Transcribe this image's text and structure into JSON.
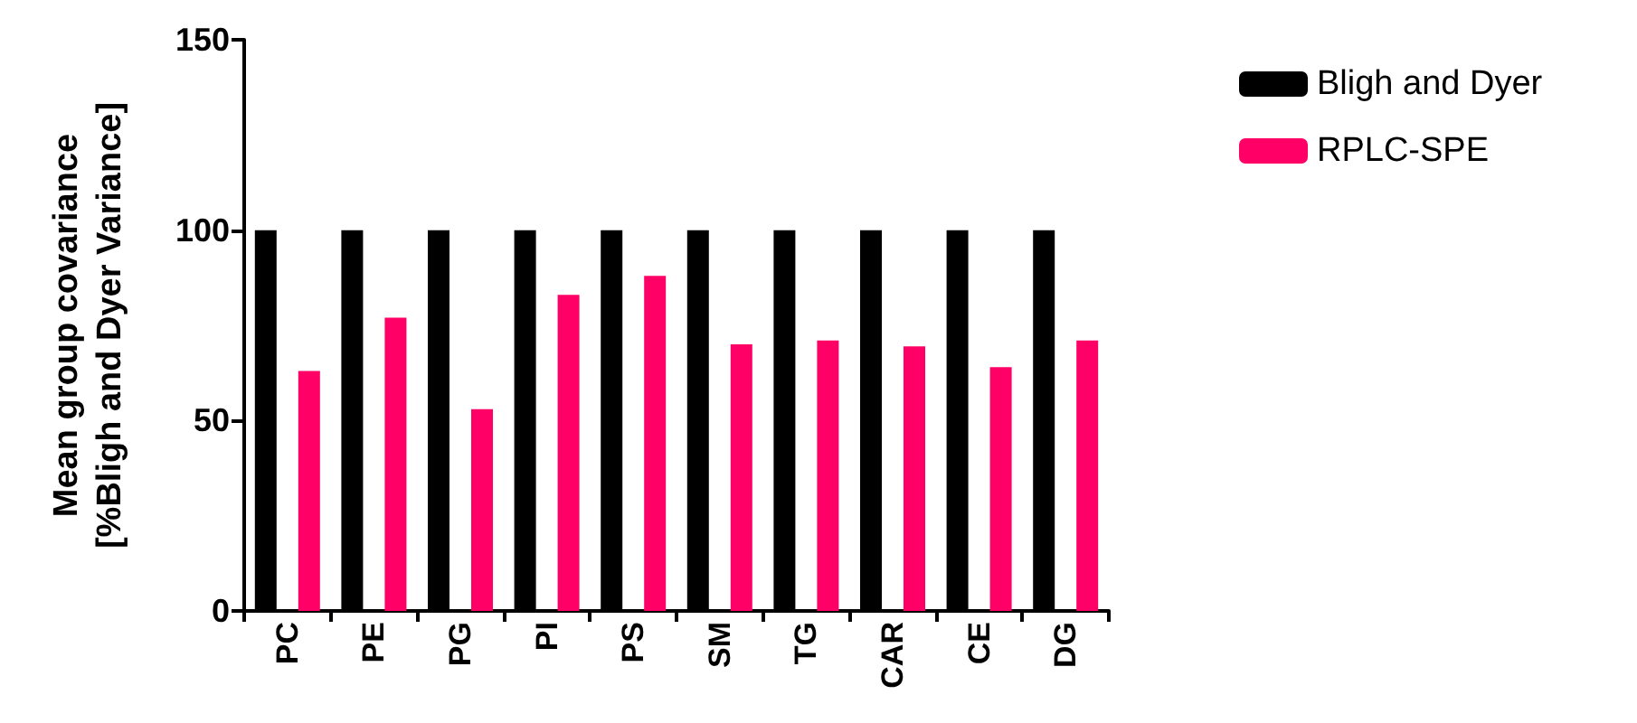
{
  "chart_data": {
    "type": "bar",
    "ylabel": "Mean group covariance\n[%Bligh and Dyer Variance]",
    "categories": [
      "PC",
      "PE",
      "PG",
      "PI",
      "PS",
      "SM",
      "TG",
      "CAR",
      "CE",
      "DG"
    ],
    "series": [
      {
        "name": "Bligh and Dyer",
        "color": "#000000",
        "values": [
          100,
          100,
          100,
          100,
          100,
          100,
          100,
          100,
          100,
          100
        ]
      },
      {
        "name": "RPLC-SPE",
        "color": "#ff0066",
        "values": [
          63,
          77,
          53,
          83,
          88,
          70,
          71,
          69.5,
          64,
          71
        ]
      }
    ],
    "ylim": [
      0,
      150
    ],
    "yticks": [
      0,
      50,
      100,
      150
    ],
    "grid": false,
    "legend": "top right"
  }
}
